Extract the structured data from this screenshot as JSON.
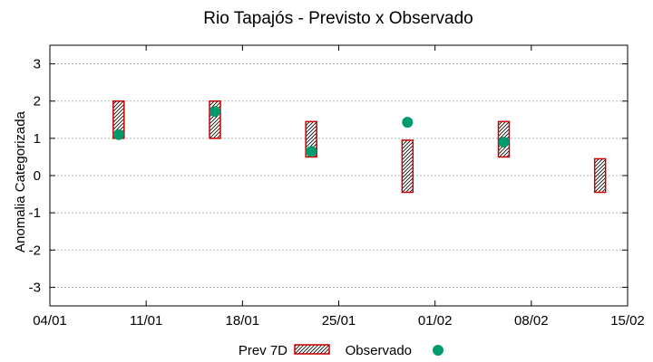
{
  "chart_data": {
    "type": "range-bar-with-points",
    "title": "Rio Tapajós - Previsto x Observado",
    "xlabel": "",
    "ylabel": "Anomalia Categorizada",
    "ylim": [
      -3.5,
      3.5
    ],
    "y_ticks": [
      3,
      2,
      1,
      0,
      -1,
      -2,
      -3
    ],
    "x_range_days": [
      0,
      42
    ],
    "x_ticks": [
      {
        "day": 0,
        "label": "04/01"
      },
      {
        "day": 7,
        "label": "11/01"
      },
      {
        "day": 14,
        "label": "18/01"
      },
      {
        "day": 21,
        "label": "25/01"
      },
      {
        "day": 28,
        "label": "01/02"
      },
      {
        "day": 35,
        "label": "08/02"
      },
      {
        "day": 42,
        "label": "15/02"
      }
    ],
    "grid": true,
    "legend_position": "bottom-center",
    "series": [
      {
        "name": "Prev 7D",
        "kind": "range",
        "color": "#cc0000",
        "data": [
          {
            "x": 5.0,
            "low": 1.0,
            "high": 2.0
          },
          {
            "x": 12.0,
            "low": 1.0,
            "high": 2.0
          },
          {
            "x": 19.0,
            "low": 0.5,
            "high": 1.45
          },
          {
            "x": 26.0,
            "low": -0.45,
            "high": 0.95
          },
          {
            "x": 33.0,
            "low": 0.5,
            "high": 1.45
          },
          {
            "x": 40.0,
            "low": -0.45,
            "high": 0.45
          }
        ]
      },
      {
        "name": "Observado",
        "kind": "point",
        "color": "#009a70",
        "data": [
          {
            "x": 5.0,
            "y": 1.1
          },
          {
            "x": 12.0,
            "y": 1.72
          },
          {
            "x": 19.0,
            "y": 0.65
          },
          {
            "x": 26.0,
            "y": 1.43
          },
          {
            "x": 33.0,
            "y": 0.9
          }
        ]
      }
    ]
  }
}
